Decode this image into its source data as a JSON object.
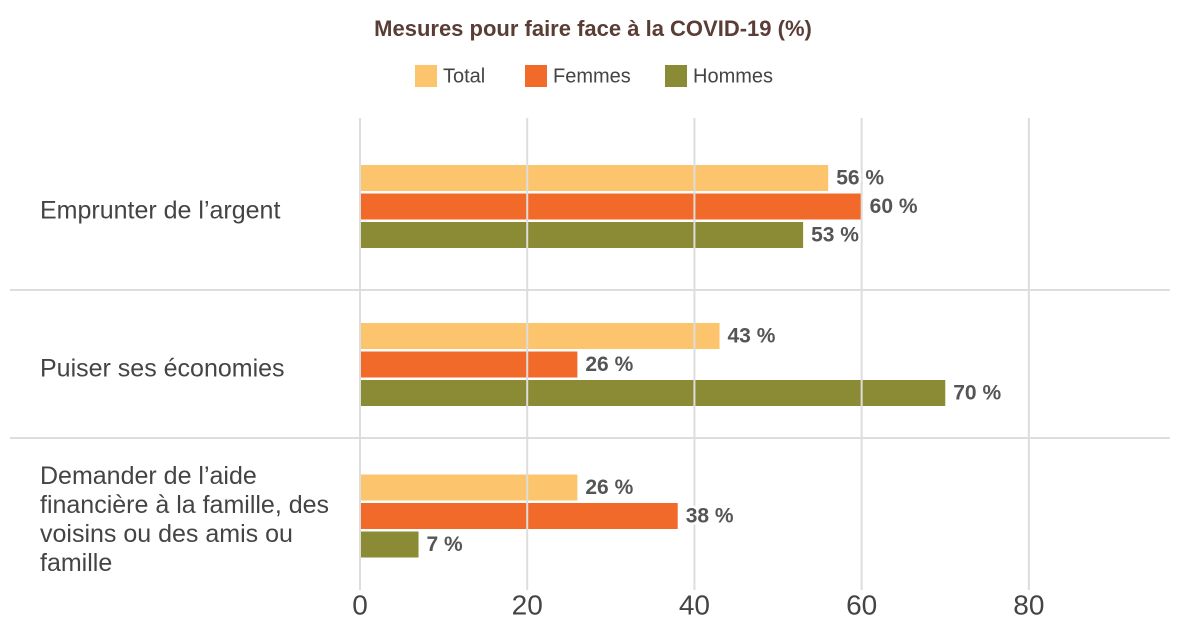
{
  "chart_data": {
    "type": "hbar",
    "title": "Mesures pour faire face à la COVID-19 (%)",
    "categories": [
      "Emprunter de l’argent",
      "Puiser ses économies",
      "Demander de l’aide financière à la famille, des voisins ou des amis ou famille"
    ],
    "series": [
      {
        "name": "Total",
        "color": "#fdc46e",
        "values": [
          56,
          43,
          26
        ],
        "value_labels": [
          "56 %",
          "43 %",
          "26 %"
        ]
      },
      {
        "name": "Femmes",
        "color": "#f26a2a",
        "values": [
          60,
          26,
          38
        ],
        "value_labels": [
          "60 %",
          "26 %",
          "38 %"
        ]
      },
      {
        "name": "Hommes",
        "color": "#8b8b35",
        "values": [
          53,
          70,
          7
        ],
        "value_labels": [
          "53 %",
          "70 %",
          "7 %"
        ]
      }
    ],
    "xlim": [
      0,
      97
    ],
    "xticks": [
      0,
      20,
      40,
      60,
      80
    ],
    "grid": true
  }
}
